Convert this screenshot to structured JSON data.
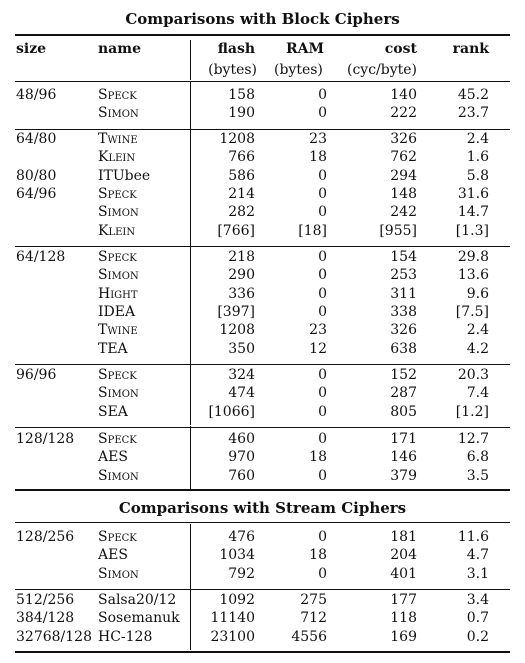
{
  "block_title": "Comparisons with Block Ciphers",
  "stream_title": "Comparisons with Stream Ciphers",
  "headers": {
    "size": "size",
    "name": "name",
    "flash": "flash",
    "flash_unit": "(bytes)",
    "ram": "RAM",
    "ram_unit": "(bytes)",
    "cost": "cost",
    "cost_unit": "(cyc/byte)",
    "rank": "rank"
  },
  "block_groups": [
    {
      "rows": [
        {
          "size": "48/96",
          "name": "Speck",
          "flash": "158",
          "ram": "0",
          "cost": "140",
          "rank": "45.2"
        },
        {
          "size": "",
          "name": "Simon",
          "flash": "190",
          "ram": "0",
          "cost": "222",
          "rank": "23.7"
        }
      ]
    },
    {
      "rows": [
        {
          "size": "64/80",
          "name": "Twine",
          "flash": "1208",
          "ram": "23",
          "cost": "326",
          "rank": "2.4"
        },
        {
          "size": "",
          "name": "Klein",
          "flash": "766",
          "ram": "18",
          "cost": "762",
          "rank": "1.6"
        },
        {
          "size": "80/80",
          "name": "ITUbee",
          "flash": "586",
          "ram": "0",
          "cost": "294",
          "rank": "5.8"
        },
        {
          "size": "64/96",
          "name": "Speck",
          "flash": "214",
          "ram": "0",
          "cost": "148",
          "rank": "31.6"
        },
        {
          "size": "",
          "name": "Simon",
          "flash": "282",
          "ram": "0",
          "cost": "242",
          "rank": "14.7"
        },
        {
          "size": "",
          "name": "Klein",
          "flash": "[766]",
          "ram": "[18]",
          "cost": "[955]",
          "rank": "[1.3]"
        }
      ]
    },
    {
      "rows": [
        {
          "size": "64/128",
          "name": "Speck",
          "flash": "218",
          "ram": "0",
          "cost": "154",
          "rank": "29.8"
        },
        {
          "size": "",
          "name": "Simon",
          "flash": "290",
          "ram": "0",
          "cost": "253",
          "rank": "13.6"
        },
        {
          "size": "",
          "name": "Hight",
          "flash": "336",
          "ram": "0",
          "cost": "311",
          "rank": "9.6"
        },
        {
          "size": "",
          "name": "IDEA",
          "flash": "[397]",
          "ram": "0",
          "cost": "338",
          "rank": "[7.5]"
        },
        {
          "size": "",
          "name": "Twine",
          "flash": "1208",
          "ram": "23",
          "cost": "326",
          "rank": "2.4"
        },
        {
          "size": "",
          "name": "TEA",
          "flash": "350",
          "ram": "12",
          "cost": "638",
          "rank": "4.2"
        }
      ]
    },
    {
      "rows": [
        {
          "size": "96/96",
          "name": "Speck",
          "flash": "324",
          "ram": "0",
          "cost": "152",
          "rank": "20.3"
        },
        {
          "size": "",
          "name": "Simon",
          "flash": "474",
          "ram": "0",
          "cost": "287",
          "rank": "7.4"
        },
        {
          "size": "",
          "name": "SEA",
          "flash": "[1066]",
          "ram": "0",
          "cost": "805",
          "rank": "[1.2]"
        }
      ]
    },
    {
      "rows": [
        {
          "size": "128/128",
          "name": "Speck",
          "flash": "460",
          "ram": "0",
          "cost": "171",
          "rank": "12.7"
        },
        {
          "size": "",
          "name": "AES",
          "flash": "970",
          "ram": "18",
          "cost": "146",
          "rank": "6.8"
        },
        {
          "size": "",
          "name": "Simon",
          "flash": "760",
          "ram": "0",
          "cost": "379",
          "rank": "3.5"
        }
      ]
    }
  ],
  "stream_groups": [
    {
      "rows": [
        {
          "size": "128/256",
          "name": "Speck",
          "flash": "476",
          "ram": "0",
          "cost": "181",
          "rank": "11.6"
        },
        {
          "size": "",
          "name": "AES",
          "flash": "1034",
          "ram": "18",
          "cost": "204",
          "rank": "4.7"
        },
        {
          "size": "",
          "name": "Simon",
          "flash": "792",
          "ram": "0",
          "cost": "401",
          "rank": "3.1"
        }
      ]
    },
    {
      "rows": [
        {
          "size": "512/256",
          "name": "Salsa20/12",
          "flash": "1092",
          "ram": "275",
          "cost": "177",
          "rank": "3.4"
        },
        {
          "size": "384/128",
          "name": "Sosemanuk",
          "flash": "11140",
          "ram": "712",
          "cost": "118",
          "rank": "0.7"
        },
        {
          "size": "32768/128",
          "name": "HC-128",
          "flash": "23100",
          "ram": "4556",
          "cost": "169",
          "rank": "0.2"
        }
      ]
    }
  ]
}
